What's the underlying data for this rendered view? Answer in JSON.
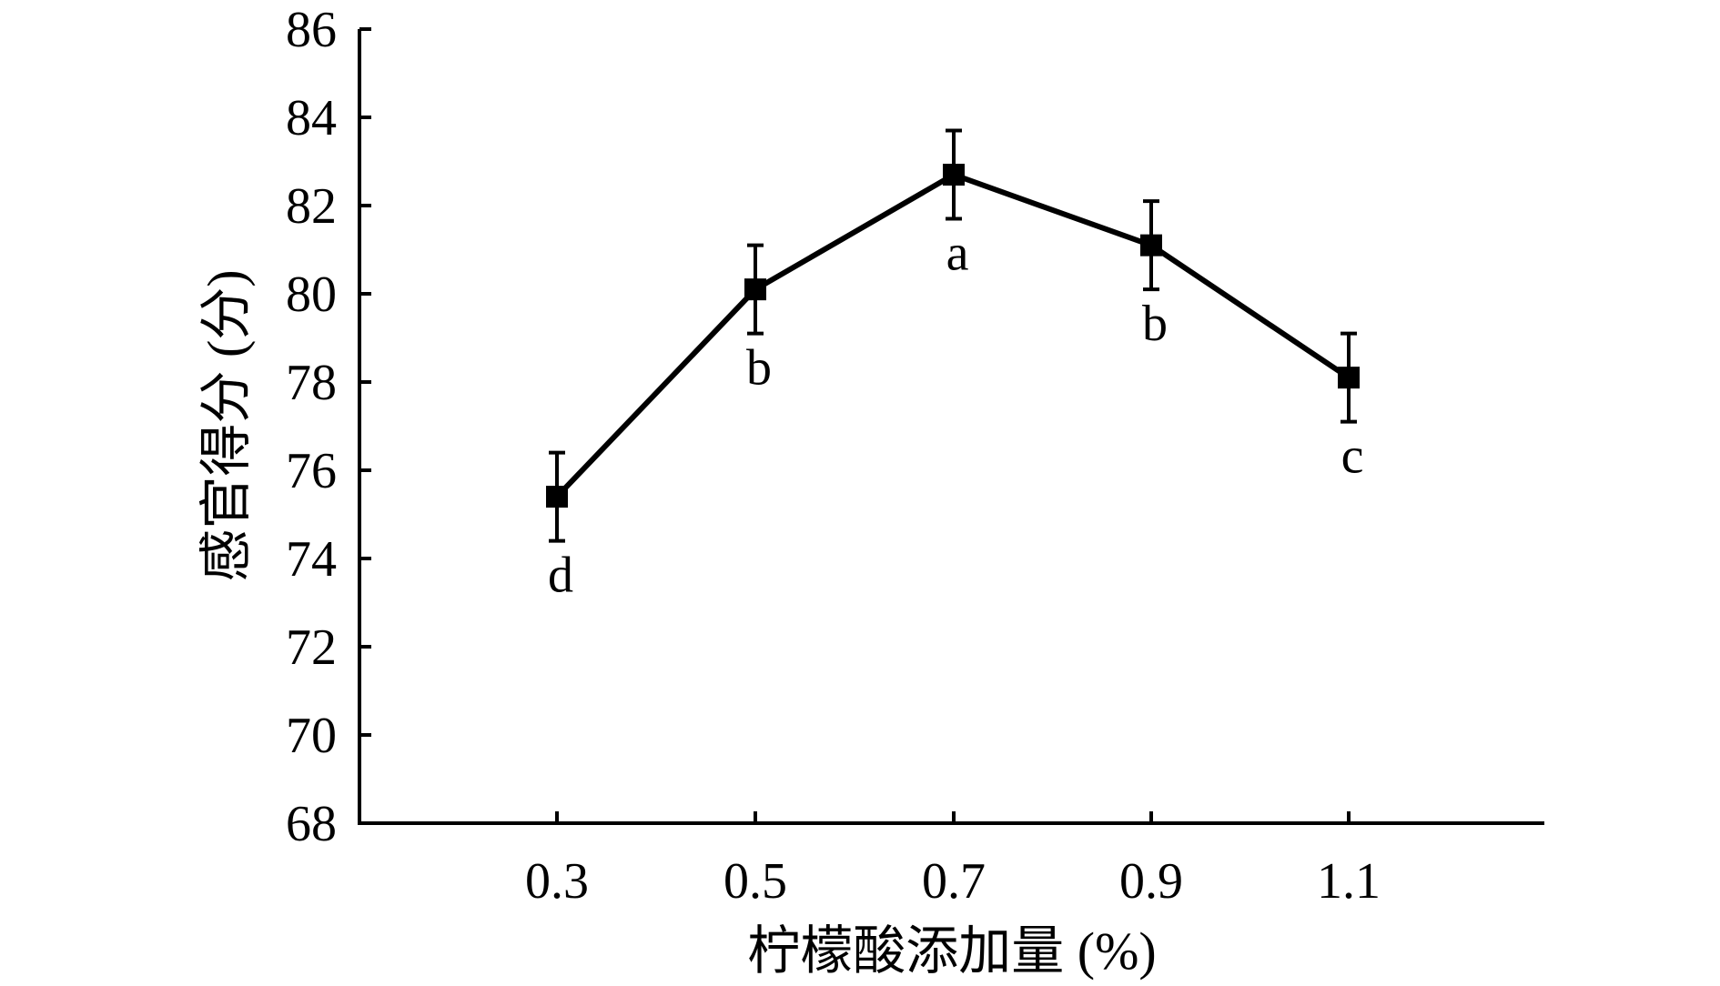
{
  "chart_data": {
    "type": "line",
    "title": "",
    "xlabel": "柠檬酸添加量 (%)",
    "ylabel": "感官得分 (分)",
    "categories": [
      "0.3",
      "0.5",
      "0.7",
      "0.9",
      "1.1"
    ],
    "ylim": [
      68,
      86
    ],
    "yticks": [
      68,
      70,
      72,
      74,
      76,
      78,
      80,
      82,
      84,
      86
    ],
    "ytick_labels": [
      "68",
      "70",
      "72",
      "74",
      "76",
      "78",
      "80",
      "82",
      "84",
      "86"
    ],
    "series": [
      {
        "values": [
          75.4,
          80.1,
          82.7,
          81.1,
          78.1
        ],
        "error": [
          1.0,
          1.0,
          1.0,
          1.0,
          1.0
        ],
        "significance": [
          "d",
          "b",
          "a",
          "b",
          "c"
        ]
      }
    ],
    "significance_position": [
      "below",
      "below",
      "below",
      "below",
      "below"
    ],
    "grid": false,
    "legend": "none",
    "colors": {
      "line": "#000000",
      "marker": "#000000",
      "axis": "#000000",
      "text": "#000000"
    }
  }
}
